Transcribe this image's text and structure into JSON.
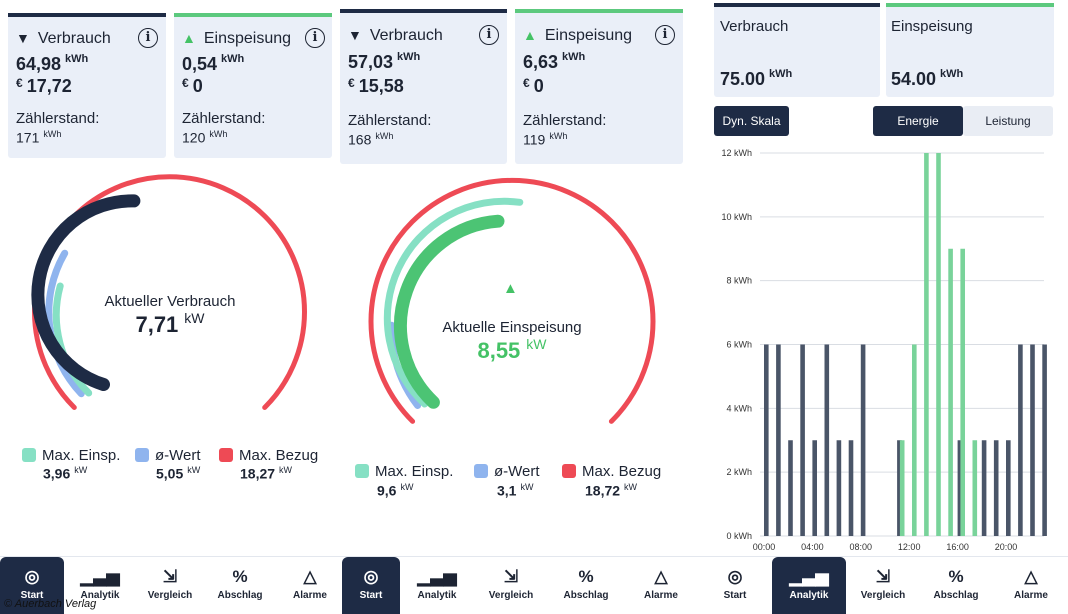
{
  "panel1": {
    "card_verbrauch": {
      "title": "Verbrauch",
      "kwh": "64,98",
      "kwh_unit": "kWh",
      "eur_symbol": "€",
      "eur": "17,72",
      "zaehler_label": "Zählerstand:",
      "zaehler": "171",
      "zaehler_unit": "kWh"
    },
    "card_einspeisung": {
      "title": "Einspeisung",
      "kwh": "0,54",
      "kwh_unit": "kWh",
      "eur_symbol": "€",
      "eur": "0",
      "zaehler_label": "Zählerstand:",
      "zaehler": "120",
      "zaehler_unit": "kWh"
    },
    "gauge": {
      "label": "Aktueller Verbrauch",
      "value": "7,71",
      "unit": "kW"
    },
    "legend": [
      {
        "name": "Max. Einsp.",
        "value": "3,96",
        "unit": "kW",
        "color": "#86e0c4"
      },
      {
        "name": "ø-Wert",
        "value": "5,05",
        "unit": "kW",
        "color": "#8fb4ee"
      },
      {
        "name": "Max. Bezug",
        "value": "18,27",
        "unit": "kW",
        "color": "#ee4a55"
      }
    ]
  },
  "panel2": {
    "card_verbrauch": {
      "title": "Verbrauch",
      "kwh": "57,03",
      "kwh_unit": "kWh",
      "eur_symbol": "€",
      "eur": "15,58",
      "zaehler_label": "Zählerstand:",
      "zaehler": "168",
      "zaehler_unit": "kWh"
    },
    "card_einspeisung": {
      "title": "Einspeisung",
      "kwh": "6,63",
      "kwh_unit": "kWh",
      "eur_symbol": "€",
      "eur": "0",
      "zaehler_label": "Zählerstand:",
      "zaehler": "119",
      "zaehler_unit": "kWh"
    },
    "gauge": {
      "label": "Aktuelle Einspeisung",
      "value": "8,55",
      "unit": "kW"
    },
    "legend": [
      {
        "name": "Max. Einsp.",
        "value": "9,6",
        "unit": "kW",
        "color": "#86e0c4"
      },
      {
        "name": "ø-Wert",
        "value": "3,1",
        "unit": "kW",
        "color": "#8fb4ee"
      },
      {
        "name": "Max. Bezug",
        "value": "18,72",
        "unit": "kW",
        "color": "#ee4a55"
      }
    ]
  },
  "panel3": {
    "card_verbrauch": {
      "title": "Verbrauch",
      "value": "75.00",
      "unit": "kWh"
    },
    "card_einspeisung": {
      "title": "Einspeisung",
      "value": "54.00",
      "unit": "kWh"
    },
    "btn_dyn": "Dyn. Skala",
    "btn_energie": "Energie",
    "btn_leistung": "Leistung"
  },
  "nav": {
    "start": "Start",
    "analytik": "Analytik",
    "vergleich": "Vergleich",
    "abschlag": "Abschlag",
    "alarme": "Alarme"
  },
  "credit": "© Auerbach Verlag",
  "colors": {
    "navy": "#1e2b45",
    "green": "#5cc97e",
    "red": "#ee4a55",
    "teal": "#86e0c4",
    "blue": "#8fb4ee",
    "bar_navy": "#4a5568",
    "bar_green": "#79d39a"
  },
  "chart_data": {
    "type": "bar",
    "ylim": [
      0,
      12
    ],
    "yticks": [
      "0 kWh",
      "2 kWh",
      "4 kWh",
      "6 kWh",
      "8 kWh",
      "10 kWh",
      "12 kWh"
    ],
    "xticks": [
      "00:00",
      "04:00",
      "08:00",
      "12:00",
      "16:00",
      "20:00"
    ],
    "series": [
      {
        "name": "Verbrauch",
        "color": "#4a5568",
        "values": [
          6,
          6,
          3,
          6,
          3,
          6,
          3,
          3,
          6,
          0,
          0,
          3,
          0,
          0,
          0,
          0,
          3,
          0,
          3,
          3,
          3,
          6,
          6,
          6
        ]
      },
      {
        "name": "Einspeisung",
        "color": "#79d39a",
        "values": [
          0,
          0,
          0,
          0,
          0,
          0,
          0,
          0,
          0,
          0,
          0,
          3,
          6,
          12,
          12,
          9,
          9,
          3,
          0,
          0,
          0,
          0,
          0,
          0
        ]
      }
    ]
  }
}
